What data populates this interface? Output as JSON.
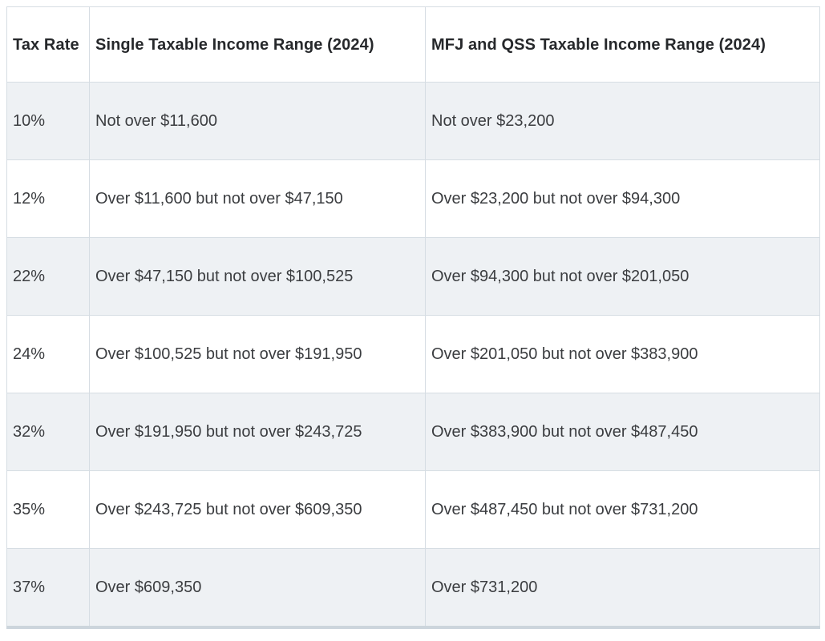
{
  "table": {
    "columns": [
      "Tax Rate",
      "Single Taxable Income Range (2024)",
      "MFJ and QSS Taxable Income Range (2024)"
    ],
    "rows": [
      {
        "rate": "10%",
        "single": "Not over $11,600",
        "mfj": "Not over $23,200"
      },
      {
        "rate": "12%",
        "single": "Over $11,600 but not over $47,150",
        "mfj": "Over $23,200 but not over $94,300"
      },
      {
        "rate": "22%",
        "single": "Over $47,150 but not over $100,525",
        "mfj": "Over $94,300 but not over $201,050"
      },
      {
        "rate": "24%",
        "single": "Over $100,525 but not over $191,950",
        "mfj": "Over $201,050 but not over $383,900"
      },
      {
        "rate": "32%",
        "single": "Over $191,950 but not over $243,725",
        "mfj": "Over $383,900 but not over $487,450"
      },
      {
        "rate": "35%",
        "single": "Over $243,725 but not over $609,350",
        "mfj": "Over $487,450 but not over $731,200"
      },
      {
        "rate": "37%",
        "single": "Over $609,350",
        "mfj": "Over $731,200"
      }
    ],
    "colors": {
      "row_shaded_bg": "#eef1f4",
      "row_plain_bg": "#ffffff",
      "border": "#d6dde3",
      "bottom_bar": "#ccd5dc",
      "header_text": "#26282b",
      "body_text": "#3b3d40"
    }
  }
}
